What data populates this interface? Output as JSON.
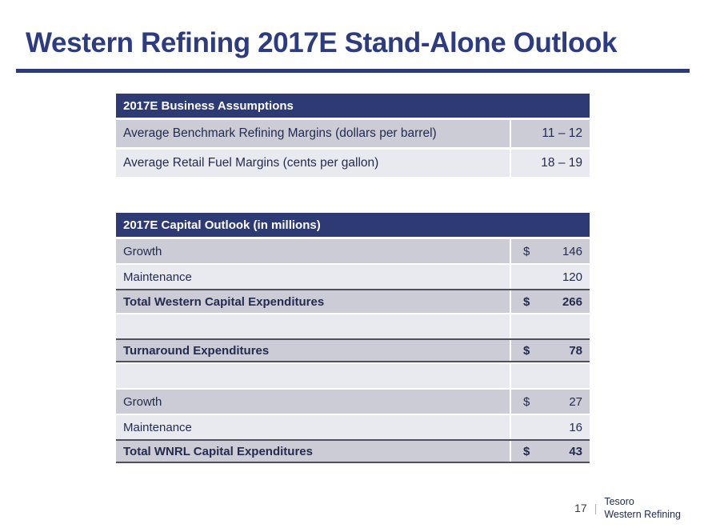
{
  "slide": {
    "title": "Western Refining 2017E Stand-Alone Outlook",
    "page_number": "17",
    "footer_separator": "|",
    "brand_line1": "Tesoro",
    "brand_line2": "Western Refining"
  },
  "colors": {
    "navy_accent": "#2e3a74",
    "title_navy": "#2d3b80",
    "row_dark_gray": "#cbccd6",
    "row_light_gray": "#e9eaf0",
    "row_text_navy": "#242b4f",
    "total_border": "#50505c"
  },
  "assumptions_table": {
    "header": "2017E Business Assumptions",
    "rows": [
      {
        "label": "Average Benchmark Refining Margins (dollars per barrel)",
        "value": "11 – 12"
      },
      {
        "label": "Average Retail Fuel Margins (cents per gallon)",
        "value": "18 – 19"
      }
    ]
  },
  "capital_table": {
    "header": "2017E Capital Outlook (in millions)",
    "rows": [
      {
        "label": "Growth",
        "currency": "$",
        "value": "146"
      },
      {
        "label": "Maintenance",
        "currency": "",
        "value": "120"
      },
      {
        "label": "Total Western Capital Expenditures",
        "currency": "$",
        "value": "266"
      },
      {
        "label": "",
        "currency": "",
        "value": ""
      },
      {
        "label": "Turnaround Expenditures",
        "currency": "$",
        "value": "78"
      },
      {
        "label": "",
        "currency": "",
        "value": ""
      },
      {
        "label": "Growth",
        "currency": "$",
        "value": "27"
      },
      {
        "label": "Maintenance",
        "currency": "",
        "value": "16"
      },
      {
        "label": "Total WNRL Capital Expenditures",
        "currency": "$",
        "value": "43"
      }
    ]
  }
}
